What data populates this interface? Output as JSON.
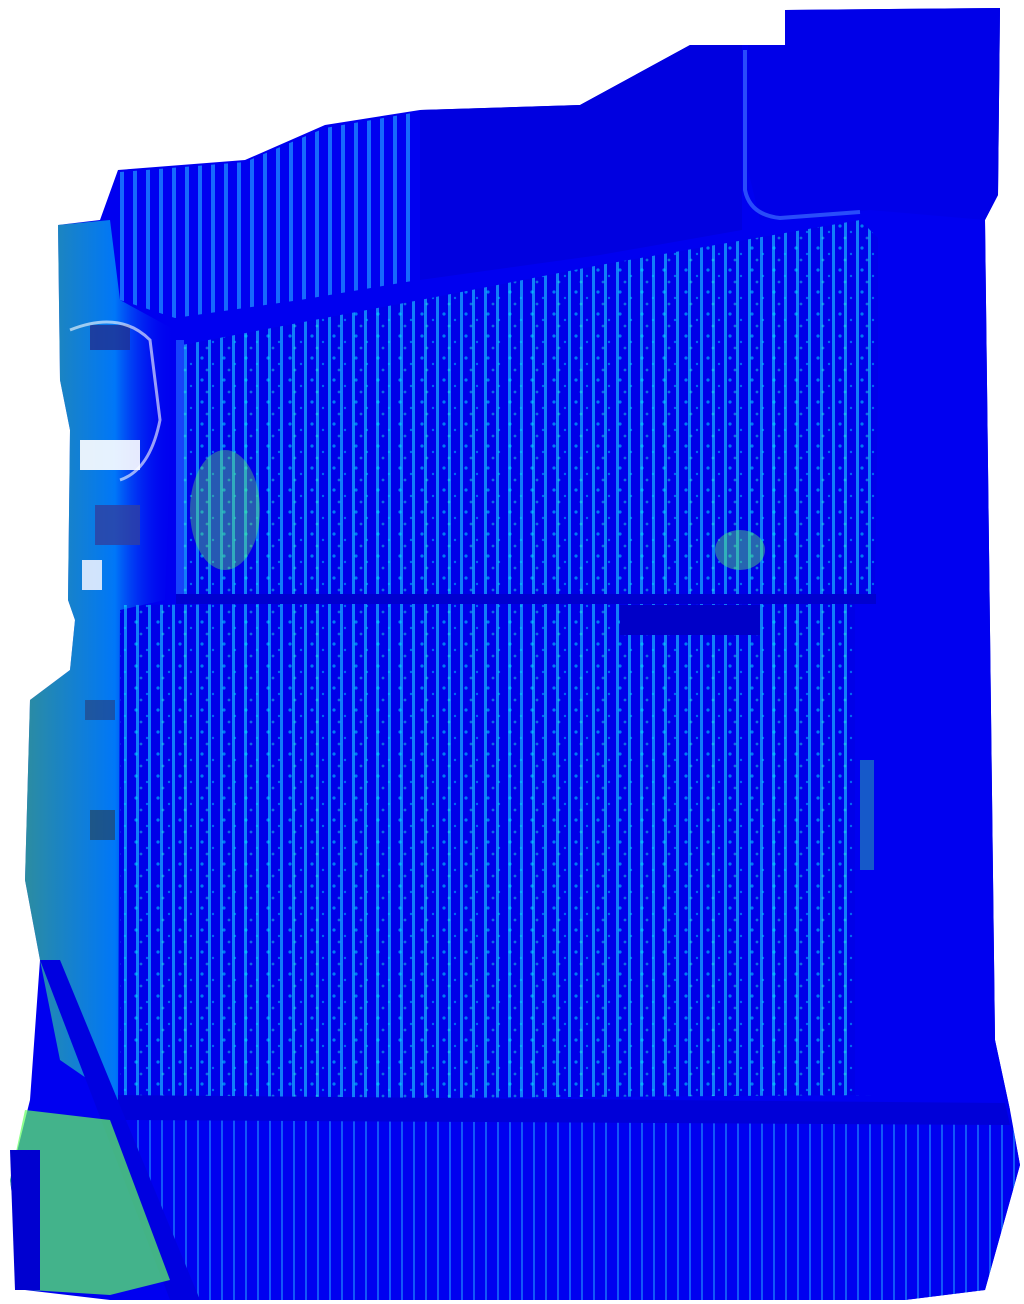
{
  "map": {
    "type": "vegetation-index-orthomosaic",
    "colors": {
      "background": "#ffffff",
      "low": "#0000f0",
      "mid": "#00c8ff",
      "high": "#00ff9a",
      "peak": "#7dff3c"
    }
  }
}
